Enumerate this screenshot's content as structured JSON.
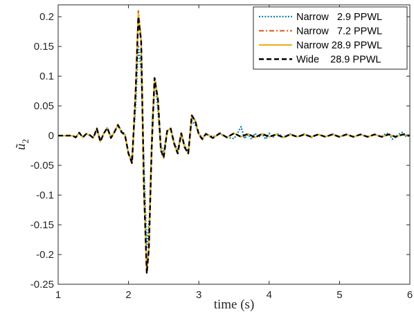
{
  "chart_data": {
    "type": "line",
    "xlabel": "time (s)",
    "ylabel_base": "ũ",
    "ylabel_sub": "2",
    "xlim": [
      1,
      6
    ],
    "ylim": [
      -0.25,
      0.22
    ],
    "xticks": [
      1,
      2,
      3,
      4,
      5,
      6
    ],
    "xtick_labels": [
      "1",
      "2",
      "3",
      "4",
      "5",
      "6"
    ],
    "yticks": [
      -0.25,
      -0.2,
      -0.15,
      -0.1,
      -0.05,
      0,
      0.05,
      0.1,
      0.15,
      0.2
    ],
    "ytick_labels": [
      "-0.25",
      "-0.2",
      "-0.15",
      "-0.1",
      "-0.05",
      "0",
      "0.05",
      "0.1",
      "0.15",
      "0.2"
    ],
    "grid": false,
    "legend_position": "top-right",
    "series": [
      {
        "name": "Narrow   2.9 PPWL",
        "color": "#0e7fa5",
        "dash": "dotted",
        "x": [
          1.0,
          1.1,
          1.2,
          1.25,
          1.3,
          1.35,
          1.4,
          1.45,
          1.5,
          1.55,
          1.6,
          1.65,
          1.7,
          1.75,
          1.8,
          1.85,
          1.9,
          1.95,
          2.0,
          2.05,
          2.1,
          2.14,
          2.18,
          2.22,
          2.26,
          2.3,
          2.34,
          2.38,
          2.42,
          2.46,
          2.5,
          2.55,
          2.6,
          2.65,
          2.7,
          2.75,
          2.8,
          2.85,
          2.9,
          2.95,
          3.0,
          3.05,
          3.1,
          3.2,
          3.3,
          3.4,
          3.5,
          3.55,
          3.6,
          3.65,
          3.7,
          3.75,
          3.8,
          3.85,
          3.9,
          3.95,
          4.0,
          4.05,
          4.1,
          4.15,
          4.2,
          4.3,
          4.4,
          4.5,
          4.6,
          4.7,
          4.8,
          4.9,
          5.0,
          5.1,
          5.2,
          5.3,
          5.4,
          5.5,
          5.6,
          5.65,
          5.7,
          5.75,
          5.8,
          5.85,
          5.9,
          5.95,
          6.0
        ],
        "y": [
          0,
          0,
          0,
          -0.002,
          0.004,
          -0.002,
          0.003,
          0,
          -0.003,
          0.012,
          -0.008,
          0.004,
          0.014,
          -0.002,
          0.005,
          0.018,
          0.008,
          0.003,
          -0.032,
          -0.038,
          0.048,
          0.152,
          0.11,
          -0.052,
          -0.19,
          -0.135,
          0.03,
          0.095,
          0.04,
          -0.018,
          -0.028,
          0.008,
          0.012,
          -0.012,
          -0.025,
          0.005,
          -0.018,
          -0.026,
          0.025,
          0.018,
          0.004,
          -0.004,
          0.003,
          -0.002,
          0.003,
          -0.003,
          -0.005,
          0.004,
          0.015,
          -0.005,
          0.002,
          -0.006,
          0.004,
          -0.003,
          0.003,
          -0.006,
          0.004,
          -0.003,
          0.003,
          0.002,
          -0.003,
          0.003,
          -0.002,
          0.003,
          -0.003,
          0.002,
          -0.002,
          0.003,
          -0.002,
          0.002,
          -0.002,
          0.002,
          -0.002,
          0.002,
          -0.002,
          0.003,
          0.004,
          -0.006,
          -0.002,
          0.003,
          0.006,
          -0.002,
          0
        ]
      },
      {
        "name": "Narrow   7.2 PPWL",
        "color": "#d95319",
        "dash": "dashdot",
        "x": [
          1.0,
          1.1,
          1.2,
          1.25,
          1.3,
          1.35,
          1.4,
          1.45,
          1.5,
          1.55,
          1.6,
          1.65,
          1.7,
          1.75,
          1.8,
          1.85,
          1.9,
          1.95,
          2.0,
          2.05,
          2.1,
          2.14,
          2.18,
          2.22,
          2.26,
          2.29,
          2.33,
          2.37,
          2.42,
          2.46,
          2.5,
          2.55,
          2.6,
          2.65,
          2.7,
          2.75,
          2.8,
          2.85,
          2.9,
          2.95,
          3.0,
          3.05,
          3.1,
          3.2,
          3.3,
          3.4,
          3.5,
          3.6,
          3.7,
          3.8,
          3.9,
          4.0,
          4.1,
          4.2,
          4.3,
          4.4,
          4.5,
          4.6,
          4.7,
          4.8,
          4.9,
          5.0,
          5.1,
          5.2,
          5.3,
          5.4,
          5.5,
          5.6,
          5.7,
          5.8,
          5.9,
          6.0
        ],
        "y": [
          0,
          0,
          0,
          -0.003,
          0.005,
          -0.003,
          0.003,
          0.001,
          -0.004,
          0.012,
          -0.01,
          0.004,
          0.013,
          -0.004,
          0.006,
          0.018,
          0.006,
          0.001,
          -0.03,
          -0.048,
          0.072,
          0.21,
          0.165,
          -0.095,
          -0.23,
          -0.19,
          -0.02,
          0.097,
          0.06,
          -0.025,
          -0.038,
          0.008,
          0.012,
          -0.014,
          -0.03,
          0.004,
          -0.02,
          -0.03,
          0.036,
          0.025,
          0.002,
          -0.006,
          0.003,
          -0.004,
          0.004,
          -0.003,
          0.004,
          -0.002,
          0.003,
          -0.003,
          0.003,
          -0.002,
          0.002,
          -0.003,
          0.002,
          -0.002,
          0.002,
          -0.002,
          0.002,
          -0.002,
          0.002,
          -0.002,
          0.002,
          -0.002,
          0.002,
          -0.002,
          0.002,
          -0.002,
          0.002,
          -0.002,
          0.002,
          0
        ]
      },
      {
        "name": "Narrow 28.9 PPWL",
        "color": "#edb120",
        "dash": "solid",
        "x": [
          1.0,
          1.1,
          1.2,
          1.25,
          1.3,
          1.35,
          1.4,
          1.45,
          1.5,
          1.55,
          1.6,
          1.65,
          1.7,
          1.75,
          1.8,
          1.85,
          1.9,
          1.95,
          2.0,
          2.05,
          2.1,
          2.14,
          2.18,
          2.22,
          2.26,
          2.29,
          2.33,
          2.37,
          2.42,
          2.46,
          2.5,
          2.55,
          2.6,
          2.65,
          2.7,
          2.75,
          2.8,
          2.85,
          2.9,
          2.95,
          3.0,
          3.05,
          3.1,
          3.2,
          3.3,
          3.4,
          3.5,
          3.6,
          3.7,
          3.8,
          3.9,
          4.0,
          4.1,
          4.2,
          4.3,
          4.4,
          4.5,
          4.6,
          4.7,
          4.8,
          4.9,
          5.0,
          5.1,
          5.2,
          5.3,
          5.4,
          5.5,
          5.6,
          5.7,
          5.8,
          5.9,
          6.0
        ],
        "y": [
          0,
          0,
          0,
          -0.003,
          0.005,
          -0.003,
          0.003,
          0.001,
          -0.004,
          0.012,
          -0.01,
          0.004,
          0.013,
          -0.004,
          0.006,
          0.018,
          0.006,
          0.001,
          -0.03,
          -0.046,
          0.07,
          0.205,
          0.16,
          -0.09,
          -0.228,
          -0.188,
          -0.02,
          0.096,
          0.06,
          -0.024,
          -0.037,
          0.008,
          0.012,
          -0.014,
          -0.03,
          0.004,
          -0.02,
          -0.03,
          0.034,
          0.024,
          0.002,
          -0.006,
          0.003,
          -0.004,
          0.004,
          -0.003,
          0.004,
          -0.002,
          0.003,
          -0.003,
          0.003,
          -0.002,
          0.002,
          -0.003,
          0.002,
          -0.002,
          0.002,
          -0.002,
          0.002,
          -0.002,
          0.002,
          -0.002,
          0.002,
          -0.002,
          0.002,
          -0.002,
          0.002,
          -0.002,
          0.002,
          -0.002,
          0.002,
          0
        ]
      },
      {
        "name": "Wide    28.9 PPWL",
        "color": "#000000",
        "dash": "dashed",
        "x": [
          1.0,
          1.1,
          1.2,
          1.25,
          1.3,
          1.35,
          1.4,
          1.45,
          1.5,
          1.55,
          1.6,
          1.65,
          1.7,
          1.75,
          1.8,
          1.85,
          1.9,
          1.95,
          2.0,
          2.05,
          2.1,
          2.14,
          2.18,
          2.22,
          2.26,
          2.29,
          2.33,
          2.37,
          2.42,
          2.46,
          2.5,
          2.55,
          2.6,
          2.65,
          2.7,
          2.75,
          2.8,
          2.85,
          2.9,
          2.95,
          3.0,
          3.05,
          3.1,
          3.2,
          3.3,
          3.4,
          3.5,
          3.6,
          3.7,
          3.8,
          3.9,
          4.0,
          4.1,
          4.2,
          4.3,
          4.4,
          4.5,
          4.6,
          4.7,
          4.8,
          4.9,
          5.0,
          5.1,
          5.2,
          5.3,
          5.4,
          5.5,
          5.6,
          5.7,
          5.8,
          5.9,
          6.0
        ],
        "y": [
          0,
          0,
          0,
          -0.003,
          0.005,
          -0.003,
          0.003,
          0.001,
          -0.004,
          0.012,
          -0.01,
          0.004,
          0.013,
          -0.004,
          0.006,
          0.018,
          0.006,
          0.001,
          -0.03,
          -0.046,
          0.07,
          0.2,
          0.158,
          -0.09,
          -0.232,
          -0.19,
          -0.02,
          0.097,
          0.06,
          -0.024,
          -0.037,
          0.008,
          0.012,
          -0.014,
          -0.03,
          0.004,
          -0.02,
          -0.03,
          0.034,
          0.024,
          0.002,
          -0.006,
          0.003,
          -0.004,
          0.004,
          -0.003,
          0.004,
          -0.002,
          0.003,
          -0.003,
          0.003,
          -0.002,
          0.002,
          -0.003,
          0.002,
          -0.002,
          0.002,
          -0.002,
          0.002,
          -0.002,
          0.002,
          -0.002,
          0.002,
          -0.002,
          0.002,
          -0.002,
          0.002,
          -0.002,
          0.002,
          -0.002,
          0.002,
          0
        ]
      }
    ]
  }
}
